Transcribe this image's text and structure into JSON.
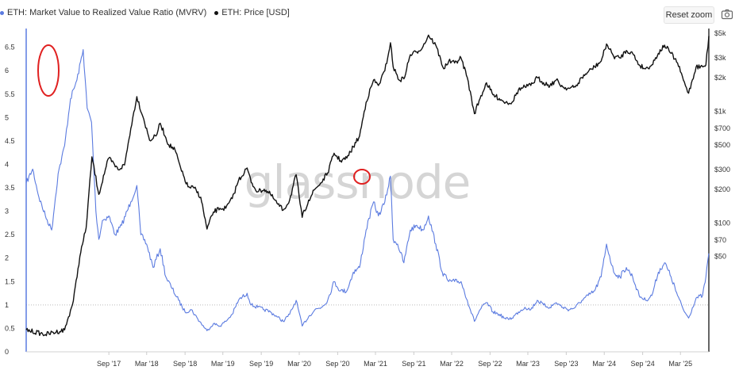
{
  "legend": [
    {
      "label": "ETH: Market Value to Realized Value Ratio (MVRV)",
      "color": "#5b7be0"
    },
    {
      "label": "ETH: Price [USD]",
      "color": "#111111"
    }
  ],
  "toolbar": {
    "reset_label": "Reset zoom",
    "camera_icon": "camera-icon"
  },
  "watermark": "glassnode",
  "chart_data": {
    "type": "line",
    "x_start": "2016-08-01",
    "x_end": "2025-07-15",
    "x_ticks": [
      "Sep '17",
      "Mar '18",
      "Sep '18",
      "Mar '19",
      "Sep '19",
      "Mar '20",
      "Sep '20",
      "Mar '21",
      "Sep '21",
      "Mar '22",
      "Sep '22",
      "Mar '23",
      "Sep '23",
      "Mar '24",
      "Sep '24",
      "Mar '25"
    ],
    "x_tick_dates": [
      "2017-09-01",
      "2018-03-01",
      "2018-09-01",
      "2019-03-01",
      "2019-09-01",
      "2020-03-01",
      "2020-09-01",
      "2021-03-01",
      "2021-09-01",
      "2022-03-01",
      "2022-09-01",
      "2023-03-01",
      "2023-09-01",
      "2024-03-01",
      "2024-09-01",
      "2025-03-01"
    ],
    "y_left": {
      "min": 0,
      "max": 6.9,
      "ticks": [
        "0",
        "0.5",
        "1",
        "1.5",
        "2",
        "2.5",
        "3",
        "3.5",
        "4",
        "4.5",
        "5",
        "5.5",
        "6",
        "6.5"
      ]
    },
    "y_right": {
      "scale": "log",
      "ticks": [
        "$50",
        "$70",
        "$100",
        "$200",
        "$300",
        "$500",
        "$700",
        "$1k",
        "$2k",
        "$3k",
        "$5k"
      ],
      "tick_values": [
        50,
        70,
        100,
        200,
        300,
        500,
        700,
        1000,
        2000,
        3000,
        5000
      ]
    },
    "reference_line": 1,
    "series": [
      {
        "name": "ETH: Market Value to Realized Value Ratio (MVRV)",
        "axis": "left",
        "color": "#5b7be0",
        "points": [
          [
            "2016-08-01",
            3.6
          ],
          [
            "2016-09-01",
            3.9
          ],
          [
            "2016-10-01",
            3.3
          ],
          [
            "2016-11-01",
            2.9
          ],
          [
            "2016-12-01",
            2.6
          ],
          [
            "2017-01-01",
            3.8
          ],
          [
            "2017-02-01",
            4.4
          ],
          [
            "2017-03-01",
            5.4
          ],
          [
            "2017-04-01",
            5.8
          ],
          [
            "2017-05-01",
            6.45
          ],
          [
            "2017-05-20",
            5.2
          ],
          [
            "2017-06-10",
            4.9
          ],
          [
            "2017-07-01",
            3.0
          ],
          [
            "2017-07-15",
            2.4
          ],
          [
            "2017-08-01",
            2.8
          ],
          [
            "2017-09-01",
            2.9
          ],
          [
            "2017-10-01",
            2.5
          ],
          [
            "2017-11-01",
            2.7
          ],
          [
            "2017-12-15",
            3.2
          ],
          [
            "2018-01-13",
            3.55
          ],
          [
            "2018-02-01",
            2.5
          ],
          [
            "2018-03-01",
            2.3
          ],
          [
            "2018-04-01",
            1.8
          ],
          [
            "2018-05-05",
            2.2
          ],
          [
            "2018-06-01",
            1.6
          ],
          [
            "2018-07-01",
            1.35
          ],
          [
            "2018-08-01",
            1.1
          ],
          [
            "2018-09-01",
            0.85
          ],
          [
            "2018-10-01",
            0.9
          ],
          [
            "2018-11-01",
            0.7
          ],
          [
            "2018-12-15",
            0.45
          ],
          [
            "2019-01-15",
            0.6
          ],
          [
            "2019-02-15",
            0.55
          ],
          [
            "2019-03-15",
            0.65
          ],
          [
            "2019-04-15",
            0.8
          ],
          [
            "2019-05-15",
            1.1
          ],
          [
            "2019-06-25",
            1.25
          ],
          [
            "2019-07-15",
            1.0
          ],
          [
            "2019-08-15",
            0.95
          ],
          [
            "2019-09-15",
            0.9
          ],
          [
            "2019-10-15",
            0.85
          ],
          [
            "2019-11-15",
            0.75
          ],
          [
            "2019-12-15",
            0.65
          ],
          [
            "2020-01-15",
            0.8
          ],
          [
            "2020-02-15",
            1.1
          ],
          [
            "2020-03-15",
            0.55
          ],
          [
            "2020-04-15",
            0.75
          ],
          [
            "2020-05-15",
            0.9
          ],
          [
            "2020-06-15",
            0.95
          ],
          [
            "2020-07-15",
            1.1
          ],
          [
            "2020-08-15",
            1.5
          ],
          [
            "2020-09-15",
            1.3
          ],
          [
            "2020-10-15",
            1.3
          ],
          [
            "2020-11-15",
            1.7
          ],
          [
            "2020-12-15",
            1.8
          ],
          [
            "2021-01-15",
            2.6
          ],
          [
            "2021-02-20",
            3.2
          ],
          [
            "2021-03-15",
            2.9
          ],
          [
            "2021-04-15",
            3.2
          ],
          [
            "2021-05-12",
            3.75
          ],
          [
            "2021-05-25",
            2.4
          ],
          [
            "2021-06-15",
            2.3
          ],
          [
            "2021-07-15",
            1.9
          ],
          [
            "2021-08-15",
            2.6
          ],
          [
            "2021-09-15",
            2.7
          ],
          [
            "2021-10-15",
            2.6
          ],
          [
            "2021-11-10",
            2.9
          ],
          [
            "2021-12-15",
            2.3
          ],
          [
            "2022-01-15",
            1.7
          ],
          [
            "2022-02-15",
            1.5
          ],
          [
            "2022-03-15",
            1.5
          ],
          [
            "2022-04-15",
            1.5
          ],
          [
            "2022-05-15",
            1.1
          ],
          [
            "2022-06-18",
            0.65
          ],
          [
            "2022-07-15",
            0.9
          ],
          [
            "2022-08-15",
            1.05
          ],
          [
            "2022-09-15",
            0.85
          ],
          [
            "2022-10-15",
            0.8
          ],
          [
            "2022-11-15",
            0.7
          ],
          [
            "2022-12-15",
            0.72
          ],
          [
            "2023-01-15",
            0.85
          ],
          [
            "2023-02-15",
            0.95
          ],
          [
            "2023-03-15",
            0.9
          ],
          [
            "2023-04-15",
            1.1
          ],
          [
            "2023-05-15",
            1.0
          ],
          [
            "2023-06-15",
            0.95
          ],
          [
            "2023-07-15",
            1.05
          ],
          [
            "2023-08-15",
            0.95
          ],
          [
            "2023-09-15",
            0.9
          ],
          [
            "2023-10-15",
            0.95
          ],
          [
            "2023-11-15",
            1.1
          ],
          [
            "2023-12-15",
            1.2
          ],
          [
            "2024-01-15",
            1.3
          ],
          [
            "2024-02-15",
            1.6
          ],
          [
            "2024-03-12",
            2.3
          ],
          [
            "2024-04-15",
            1.7
          ],
          [
            "2024-05-15",
            1.6
          ],
          [
            "2024-06-15",
            1.8
          ],
          [
            "2024-07-15",
            1.6
          ],
          [
            "2024-08-15",
            1.2
          ],
          [
            "2024-09-15",
            1.1
          ],
          [
            "2024-10-15",
            1.2
          ],
          [
            "2024-11-15",
            1.7
          ],
          [
            "2024-12-15",
            1.9
          ],
          [
            "2025-01-15",
            1.6
          ],
          [
            "2025-02-15",
            1.2
          ],
          [
            "2025-03-15",
            0.9
          ],
          [
            "2025-04-09",
            0.72
          ],
          [
            "2025-05-15",
            1.15
          ],
          [
            "2025-06-15",
            1.2
          ],
          [
            "2025-07-01",
            1.6
          ],
          [
            "2025-07-15",
            2.1
          ]
        ]
      },
      {
        "name": "ETH: Price [USD]",
        "axis": "right",
        "color": "#111111",
        "points": [
          [
            "2016-08-01",
            11
          ],
          [
            "2016-11-01",
            10
          ],
          [
            "2017-02-01",
            11
          ],
          [
            "2017-03-15",
            20
          ],
          [
            "2017-04-15",
            50
          ],
          [
            "2017-05-15",
            90
          ],
          [
            "2017-06-12",
            390
          ],
          [
            "2017-07-15",
            180
          ],
          [
            "2017-08-15",
            300
          ],
          [
            "2017-09-01",
            380
          ],
          [
            "2017-10-15",
            300
          ],
          [
            "2017-11-15",
            330
          ],
          [
            "2017-12-15",
            700
          ],
          [
            "2018-01-13",
            1350
          ],
          [
            "2018-02-15",
            850
          ],
          [
            "2018-03-15",
            550
          ],
          [
            "2018-04-15",
            600
          ],
          [
            "2018-05-05",
            780
          ],
          [
            "2018-06-15",
            500
          ],
          [
            "2018-07-15",
            450
          ],
          [
            "2018-08-15",
            290
          ],
          [
            "2018-09-15",
            210
          ],
          [
            "2018-10-15",
            205
          ],
          [
            "2018-11-15",
            170
          ],
          [
            "2018-12-15",
            88
          ],
          [
            "2019-01-15",
            125
          ],
          [
            "2019-02-15",
            135
          ],
          [
            "2019-03-15",
            135
          ],
          [
            "2019-04-15",
            165
          ],
          [
            "2019-05-15",
            240
          ],
          [
            "2019-06-25",
            310
          ],
          [
            "2019-07-15",
            230
          ],
          [
            "2019-08-15",
            190
          ],
          [
            "2019-09-15",
            200
          ],
          [
            "2019-10-15",
            180
          ],
          [
            "2019-11-15",
            150
          ],
          [
            "2019-12-15",
            130
          ],
          [
            "2020-01-15",
            160
          ],
          [
            "2020-02-15",
            270
          ],
          [
            "2020-03-15",
            112
          ],
          [
            "2020-04-15",
            160
          ],
          [
            "2020-05-15",
            200
          ],
          [
            "2020-06-15",
            230
          ],
          [
            "2020-07-15",
            280
          ],
          [
            "2020-08-15",
            420
          ],
          [
            "2020-09-15",
            360
          ],
          [
            "2020-10-15",
            380
          ],
          [
            "2020-11-15",
            480
          ],
          [
            "2020-12-15",
            600
          ],
          [
            "2021-01-15",
            1200
          ],
          [
            "2021-02-20",
            1900
          ],
          [
            "2021-03-15",
            1700
          ],
          [
            "2021-04-15",
            2300
          ],
          [
            "2021-05-12",
            4100
          ],
          [
            "2021-05-25",
            2500
          ],
          [
            "2021-06-22",
            1900
          ],
          [
            "2021-07-15",
            1950
          ],
          [
            "2021-08-15",
            3200
          ],
          [
            "2021-09-15",
            3400
          ],
          [
            "2021-10-15",
            3800
          ],
          [
            "2021-11-10",
            4800
          ],
          [
            "2021-12-15",
            3900
          ],
          [
            "2022-01-22",
            2400
          ],
          [
            "2022-02-15",
            2800
          ],
          [
            "2022-03-15",
            2700
          ],
          [
            "2022-04-15",
            3000
          ],
          [
            "2022-05-15",
            2000
          ],
          [
            "2022-06-18",
            950
          ],
          [
            "2022-07-15",
            1300
          ],
          [
            "2022-08-15",
            1800
          ],
          [
            "2022-09-15",
            1400
          ],
          [
            "2022-10-15",
            1300
          ],
          [
            "2022-11-15",
            1200
          ],
          [
            "2022-12-15",
            1200
          ],
          [
            "2023-01-15",
            1550
          ],
          [
            "2023-02-15",
            1650
          ],
          [
            "2023-03-15",
            1700
          ],
          [
            "2023-04-15",
            2000
          ],
          [
            "2023-05-15",
            1800
          ],
          [
            "2023-06-15",
            1700
          ],
          [
            "2023-07-15",
            1900
          ],
          [
            "2023-08-15",
            1650
          ],
          [
            "2023-09-15",
            1600
          ],
          [
            "2023-10-15",
            1650
          ],
          [
            "2023-11-15",
            2000
          ],
          [
            "2023-12-15",
            2250
          ],
          [
            "2024-01-15",
            2500
          ],
          [
            "2024-02-15",
            2800
          ],
          [
            "2024-03-12",
            4000
          ],
          [
            "2024-04-15",
            3100
          ],
          [
            "2024-05-15",
            3000
          ],
          [
            "2024-06-15",
            3500
          ],
          [
            "2024-07-15",
            3300
          ],
          [
            "2024-08-15",
            2600
          ],
          [
            "2024-09-15",
            2400
          ],
          [
            "2024-10-15",
            2600
          ],
          [
            "2024-11-15",
            3300
          ],
          [
            "2024-12-15",
            3900
          ],
          [
            "2025-01-15",
            3300
          ],
          [
            "2025-02-15",
            2700
          ],
          [
            "2025-03-15",
            1900
          ],
          [
            "2025-04-09",
            1450
          ],
          [
            "2025-05-15",
            2500
          ],
          [
            "2025-06-15",
            2500
          ],
          [
            "2025-07-01",
            2600
          ],
          [
            "2025-07-15",
            4700
          ]
        ]
      }
    ]
  }
}
